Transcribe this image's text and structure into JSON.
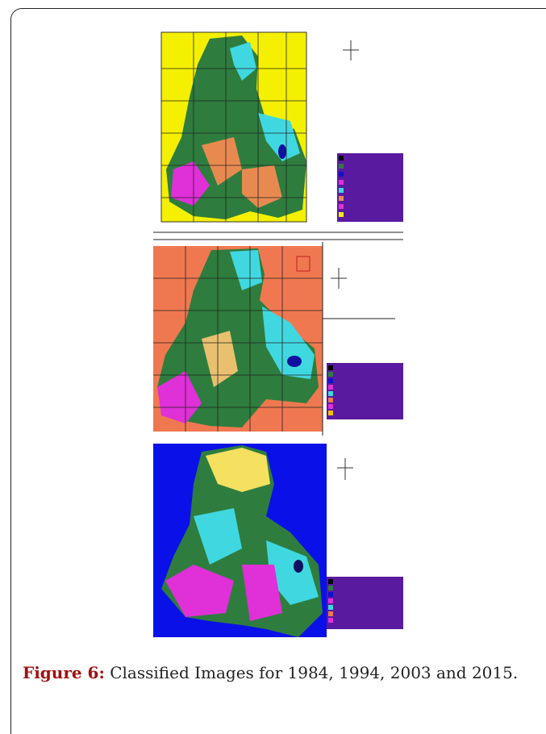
{
  "figure": {
    "label": "Figure 6:",
    "caption": "Classified Images for 1984, 1994, 2003 and 2015."
  }
}
